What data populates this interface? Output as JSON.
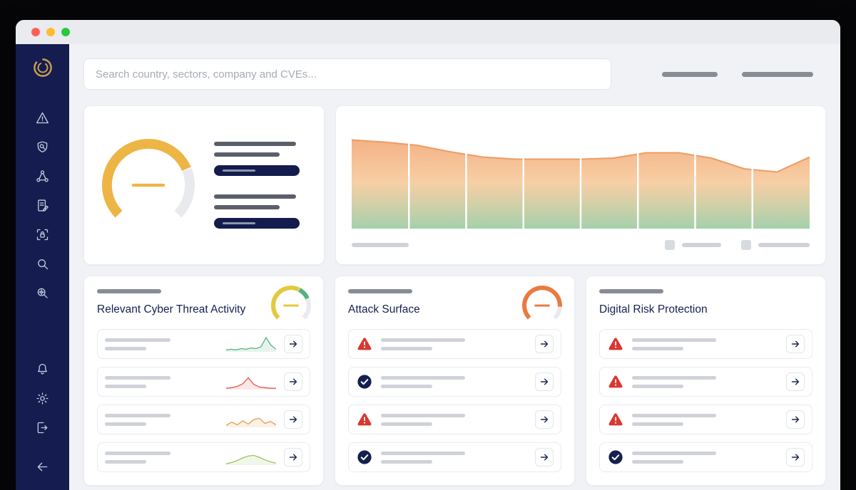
{
  "window": {
    "traffic_lights": {
      "close": "#ff5f57",
      "minimize": "#febc2e",
      "zoom": "#28c840"
    }
  },
  "search": {
    "placeholder": "Search country, sectors, company and CVEs..."
  },
  "sidebar": {
    "items": [
      "alerts",
      "shield-search",
      "network",
      "report-edit",
      "lock-scan",
      "search",
      "search-settings"
    ],
    "bottom_items": [
      "notifications",
      "settings",
      "logout"
    ],
    "collapse": "collapse"
  },
  "cards": {
    "threat_activity": {
      "title": "Relevant Cyber Threat Activity",
      "rows": [
        {
          "spark": "spark-1"
        },
        {
          "spark": "spark-2"
        },
        {
          "spark": "spark-3"
        },
        {
          "spark": "spark-4"
        }
      ]
    },
    "attack_surface": {
      "title": "Attack Surface",
      "rows": [
        {
          "icon": "warning"
        },
        {
          "icon": "check"
        },
        {
          "icon": "warning"
        },
        {
          "icon": "check"
        }
      ]
    },
    "digital_risk": {
      "title": "Digital Risk Protection",
      "rows": [
        {
          "icon": "warning"
        },
        {
          "icon": "warning"
        },
        {
          "icon": "warning"
        },
        {
          "icon": "check"
        }
      ]
    }
  },
  "colors": {
    "sidebar_bg": "#151c4f",
    "navy": "#15204f",
    "gold": "#c9a14f",
    "amber": "#ecb546",
    "yellow": "#e3c93e",
    "green": "#58b17f",
    "orange": "#e87b42",
    "alert_red": "#d8382f",
    "chart_grad_top": "#f2a06b",
    "chart_grad_mid": "#f5c18c",
    "chart_grad_bottom": "#93c99e",
    "chart_edge": "#ec9c63"
  },
  "chart_data": [
    {
      "id": "trend-area",
      "type": "area",
      "x": [
        1,
        2,
        3,
        4,
        5,
        6,
        7,
        8,
        9,
        10,
        11,
        12,
        13,
        14,
        15
      ],
      "values": [
        83,
        81,
        78,
        72,
        67,
        65,
        65,
        65,
        66,
        71,
        71,
        66,
        56,
        53,
        67
      ],
      "ylim": [
        0,
        100
      ],
      "title": "",
      "xlabel": "",
      "ylabel": "",
      "grid": "vertical-white-8-columns",
      "legend": [
        "placeholder-a",
        "placeholder-b"
      ]
    },
    {
      "id": "gauge-main",
      "type": "gauge",
      "segments": [
        {
          "color": "#ecb546",
          "value": 75
        },
        {
          "color": "#e9eaee",
          "value": 25
        }
      ],
      "needle": "#ecb546"
    },
    {
      "id": "gauge-threat",
      "type": "gauge",
      "segments": [
        {
          "color": "#e3c93e",
          "value": 60
        },
        {
          "color": "#58b17f",
          "value": 15
        },
        {
          "color": "#e9eaee",
          "value": 25
        }
      ],
      "needle": "#e3c93e"
    },
    {
      "id": "gauge-attack",
      "type": "gauge",
      "segments": [
        {
          "color": "#e87b42",
          "value": 85
        },
        {
          "color": "#e9eaee",
          "value": 15
        }
      ],
      "needle": "#e87b42"
    },
    {
      "id": "spark-1",
      "type": "line",
      "values": [
        3,
        4,
        3,
        5,
        4,
        6,
        5,
        8,
        22,
        10,
        4
      ],
      "color": "#54b383"
    },
    {
      "id": "spark-2",
      "type": "line",
      "values": [
        2,
        3,
        5,
        9,
        18,
        8,
        4,
        3,
        2,
        2
      ],
      "color": "#e05a4e"
    },
    {
      "id": "spark-3",
      "type": "line",
      "values": [
        3,
        8,
        4,
        10,
        5,
        12,
        14,
        6,
        9,
        4
      ],
      "color": "#e69a4b"
    },
    {
      "id": "spark-4",
      "type": "line",
      "values": [
        2,
        4,
        7,
        11,
        14,
        15,
        12,
        8,
        5,
        3
      ],
      "color": "#9cc45e"
    }
  ]
}
